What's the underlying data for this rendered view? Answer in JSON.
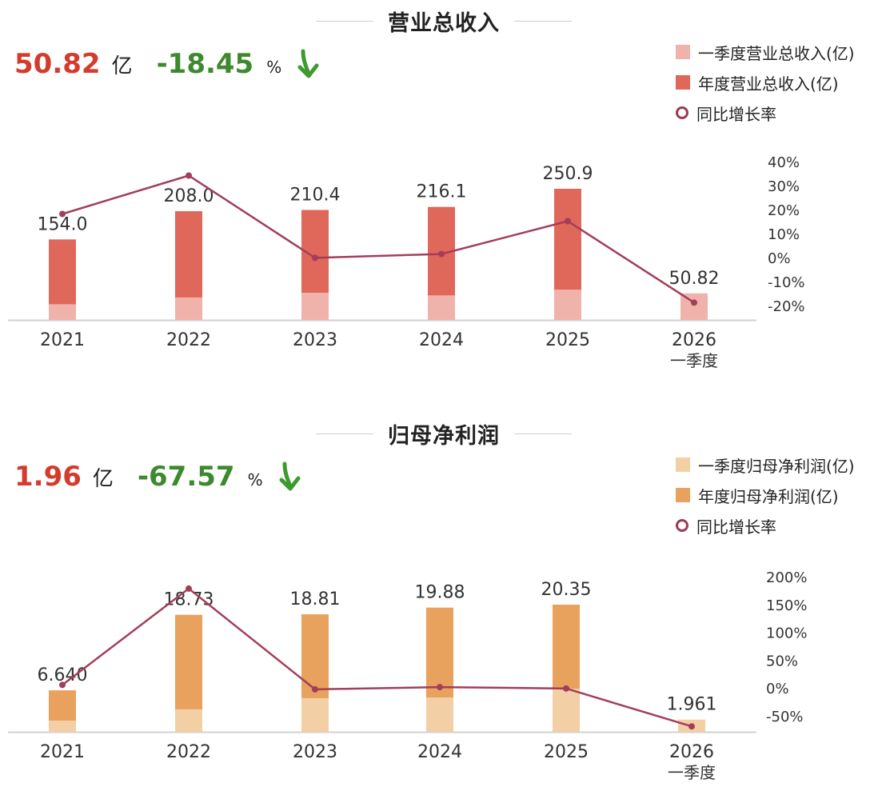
{
  "charts": [
    {
      "title": "营业总收入",
      "kpi": {
        "value": "50.82",
        "unit": "亿",
        "change": "-18.45",
        "pct": "%"
      },
      "legend": [
        "一季度营业总收入(亿)",
        "年度营业总收入(亿)",
        "同比增长率"
      ],
      "colors": {
        "q1": "#efb3ab",
        "annual": "#e0685a",
        "line": "#a33e5a"
      },
      "icons": {
        "trend": "down-arrow-icon"
      }
    },
    {
      "title": "归母净利润",
      "kpi": {
        "value": "1.96",
        "unit": "亿",
        "change": "-67.57",
        "pct": "%"
      },
      "legend": [
        "一季度归母净利润(亿)",
        "年度归母净利润(亿)",
        "同比增长率"
      ],
      "colors": {
        "q1": "#f3cfa5",
        "annual": "#e9a15e",
        "line": "#a33e5a"
      },
      "icons": {
        "trend": "down-arrow-icon"
      }
    }
  ],
  "chart_data": [
    {
      "type": "bar",
      "title": "营业总收入",
      "categories": [
        "2021",
        "2022",
        "2023",
        "2024",
        "2025",
        "2026"
      ],
      "category_sublabels": [
        "",
        "",
        "",
        "",
        "",
        "一季度"
      ],
      "series": [
        {
          "name": "一季度营业总收入(亿)",
          "values": [
            30,
            43,
            52,
            47,
            58,
            50.82
          ]
        },
        {
          "name": "年度营业总收入(亿)",
          "values": [
            154.0,
            208.0,
            210.4,
            216.1,
            250.9,
            null
          ]
        },
        {
          "name": "同比增长率",
          "type": "line",
          "axis": "right",
          "values": [
            18.5,
            34.5,
            0.2,
            1.8,
            15.5,
            -18.45
          ]
        }
      ],
      "data_labels": [
        "154.0",
        "208.0",
        "210.4",
        "216.1",
        "250.9",
        "50.82"
      ],
      "ylim_right": [
        -20,
        40
      ],
      "right_ticks": [
        "40%",
        "30%",
        "20%",
        "10%",
        "0%",
        "-10%",
        "-20%"
      ],
      "grid": false,
      "legend_position": "top-right"
    },
    {
      "type": "bar",
      "title": "归母净利润",
      "categories": [
        "2021",
        "2022",
        "2023",
        "2024",
        "2025",
        "2026"
      ],
      "category_sublabels": [
        "",
        "",
        "",
        "",
        "",
        "一季度"
      ],
      "series": [
        {
          "name": "一季度归母净利润(亿)",
          "values": [
            1.8,
            3.6,
            5.4,
            5.5,
            6.9,
            1.961
          ]
        },
        {
          "name": "年度归母净利润(亿)",
          "values": [
            6.64,
            18.73,
            18.81,
            19.88,
            20.35,
            null
          ]
        },
        {
          "name": "同比增长率",
          "type": "line",
          "axis": "right",
          "values": [
            7,
            180,
            -1,
            3,
            0.5,
            -67.57
          ]
        }
      ],
      "data_labels": [
        "6.640",
        "18.73",
        "18.81",
        "19.88",
        "20.35",
        "1.961"
      ],
      "ylim_right": [
        -50,
        200
      ],
      "right_ticks": [
        "200%",
        "150%",
        "100%",
        "50%",
        "0%",
        "-50%"
      ],
      "grid": false,
      "legend_position": "top-right"
    }
  ]
}
